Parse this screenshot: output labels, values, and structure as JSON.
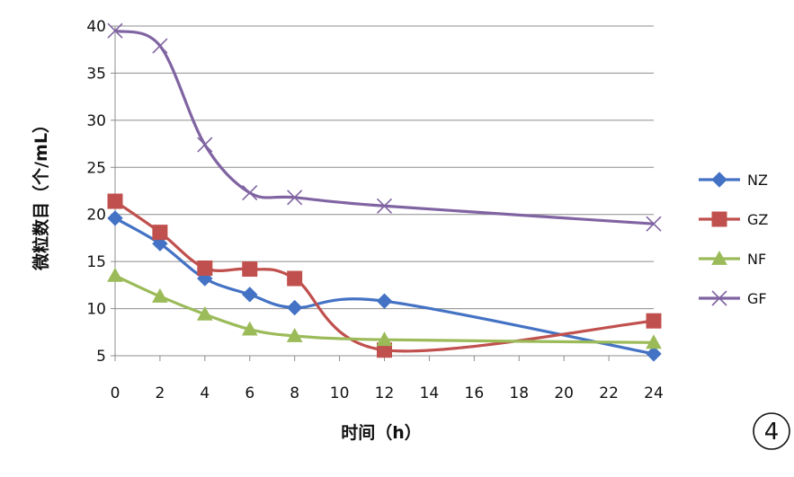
{
  "chart_data": {
    "type": "line",
    "x": [
      0,
      2,
      4,
      6,
      8,
      12,
      24
    ],
    "x_ticks": [
      "0",
      "2",
      "4",
      "6",
      "8",
      "10",
      "12",
      "14",
      "16",
      "18",
      "20",
      "22",
      "24"
    ],
    "y_ticks": [
      "5",
      "10",
      "15",
      "20",
      "25",
      "30",
      "35",
      "40"
    ],
    "xlim": [
      0,
      24
    ],
    "ylim": [
      5,
      40
    ],
    "xlabel": "时间（h）",
    "ylabel": "微粒数目（个/mL）",
    "grid": true,
    "legend_position": "right",
    "series": [
      {
        "name": "NZ",
        "color": "#4472C4",
        "marker": "diamond",
        "values": [
          19.6,
          16.9,
          13.2,
          11.5,
          10.1,
          10.8,
          5.2
        ]
      },
      {
        "name": "GZ",
        "color": "#C0504D",
        "marker": "square",
        "values": [
          21.4,
          18.1,
          14.3,
          14.2,
          13.2,
          5.6,
          8.7
        ]
      },
      {
        "name": "NF",
        "color": "#9BBB59",
        "marker": "triangle",
        "values": [
          13.5,
          11.3,
          9.4,
          7.8,
          7.1,
          6.7,
          6.4
        ]
      },
      {
        "name": "GF",
        "color": "#8064A2",
        "marker": "x",
        "values": [
          39.5,
          37.9,
          27.4,
          22.3,
          21.8,
          20.9,
          19.0
        ]
      }
    ]
  },
  "badge": {
    "label": "4"
  }
}
